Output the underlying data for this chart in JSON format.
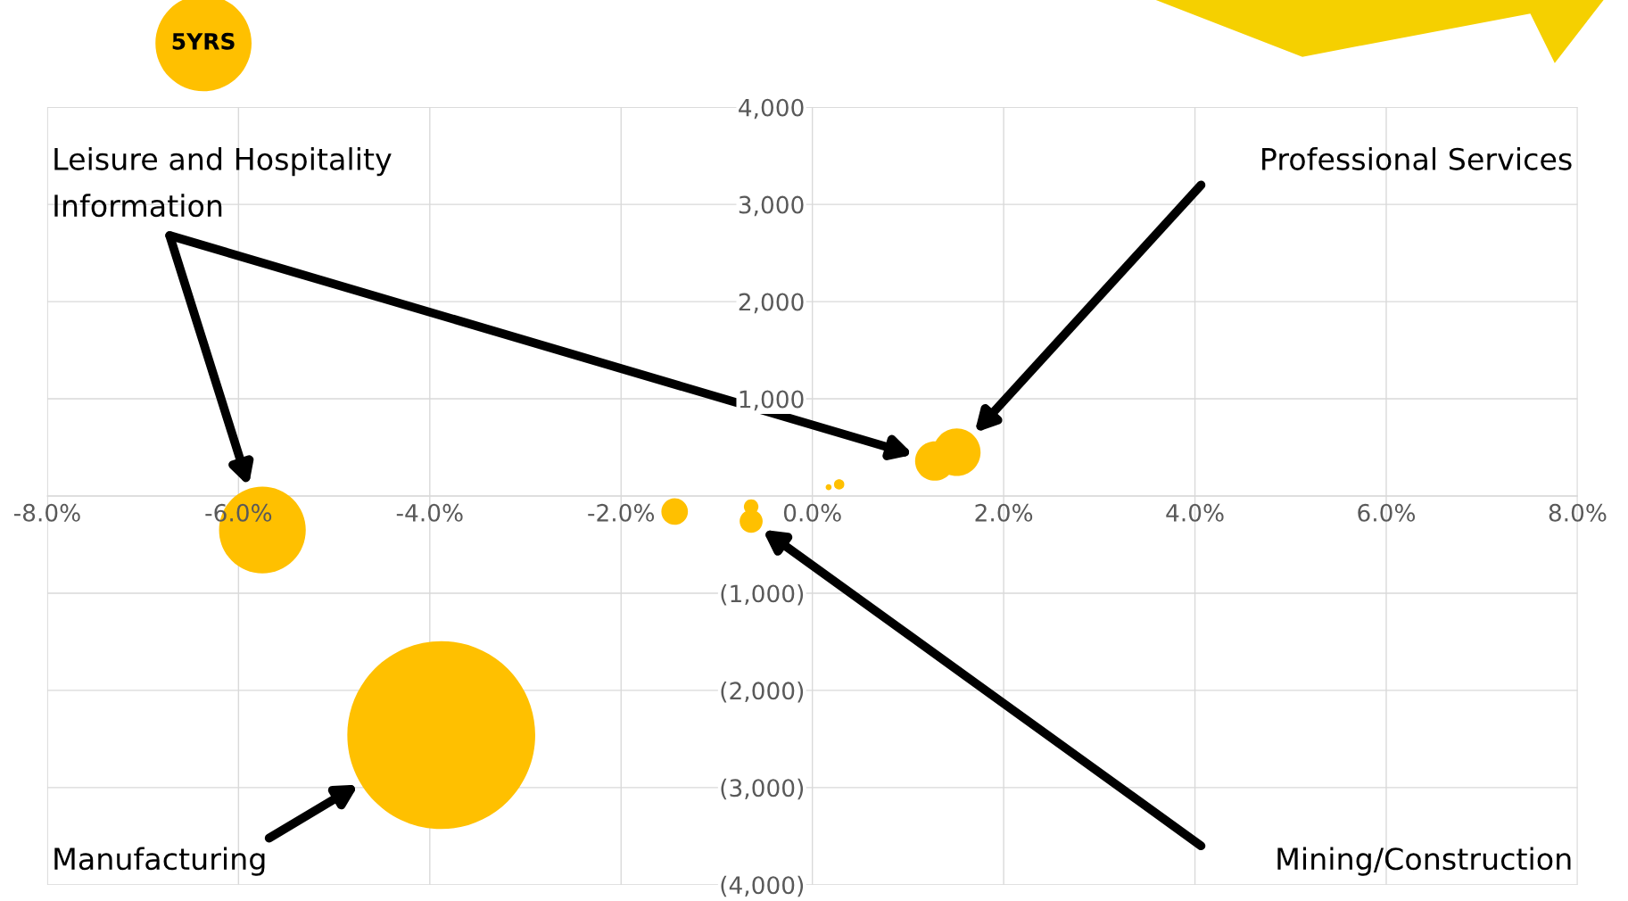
{
  "chart_data": {
    "type": "bubble",
    "x": [
      -3.88,
      -5.75,
      -1.44,
      -0.64,
      -0.64,
      1.28,
      1.51,
      0.28,
      0.17
    ],
    "values": [
      -2460,
      -350,
      -160,
      -260,
      -110,
      360,
      450,
      120,
      90
    ],
    "sizes": [
      1,
      0.213,
      0.02,
      0.015,
      0.006,
      0.044,
      0.064,
      0.003,
      0.001
    ],
    "color": "#ffc000",
    "xlim": [
      -8,
      8
    ],
    "ylim": [
      -4000,
      4000
    ],
    "xticks": [
      {
        "value": -8,
        "label": "-8.0%"
      },
      {
        "value": -6,
        "label": "-6.0%"
      },
      {
        "value": -4,
        "label": "-4.0%"
      },
      {
        "value": -2,
        "label": "-2.0%"
      },
      {
        "value": 0,
        "label": "0.0%"
      },
      {
        "value": 2,
        "label": "2.0%"
      },
      {
        "value": 4,
        "label": "4.0%"
      },
      {
        "value": 6,
        "label": "6.0%"
      },
      {
        "value": 8,
        "label": "8.0%"
      }
    ],
    "yticks": [
      {
        "value": -4000,
        "label": "(4,000)"
      },
      {
        "value": -3000,
        "label": "(3,000)"
      },
      {
        "value": -2000,
        "label": "(2,000)"
      },
      {
        "value": -1000,
        "label": "(1,000)"
      },
      {
        "value": 0,
        "label": null
      },
      {
        "value": 1000,
        "label": "1,000"
      },
      {
        "value": 2000,
        "label": "2,000"
      },
      {
        "value": 3000,
        "label": "3,000"
      },
      {
        "value": 4000,
        "label": "4,000"
      }
    ],
    "grid": true,
    "annotations": [
      "5YRS",
      "Leisure and Hospitality",
      "Information",
      "Professional Services",
      "Manufacturing",
      "Mining/Construction"
    ]
  }
}
